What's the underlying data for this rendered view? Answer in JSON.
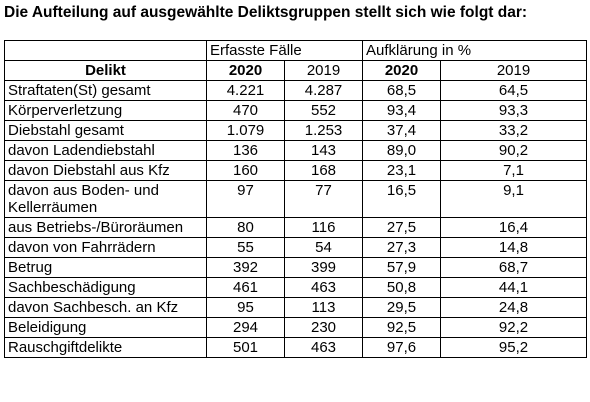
{
  "heading": "Die Aufteilung auf ausgewählte Deliktsgruppen stellt sich wie folgt dar:",
  "groups": {
    "erfasst": "Erfasste Fälle",
    "aufklaerung": "Aufklärung in %"
  },
  "columns": {
    "delikt": "Delikt",
    "y2020a": "2020",
    "y2019a": "2019",
    "y2020b": "2020",
    "y2019b": "2019"
  },
  "rows": [
    {
      "name": "Straftaten(St) gesamt",
      "e2020": "4.221",
      "e2019": "4.287",
      "a2020": "68,5",
      "a2019": "64,5"
    },
    {
      "name": "Körperverletzung",
      "e2020": "470",
      "e2019": "552",
      "a2020": "93,4",
      "a2019": "93,3"
    },
    {
      "name": "Diebstahl gesamt",
      "e2020": "1.079",
      "e2019": "1.253",
      "a2020": "37,4",
      "a2019": "33,2"
    },
    {
      "name": "davon Ladendiebstahl",
      "e2020": "136",
      "e2019": "143",
      "a2020": "89,0",
      "a2019": "90,2"
    },
    {
      "name": "davon Diebstahl aus Kfz",
      "e2020": "160",
      "e2019": "168",
      "a2020": "23,1",
      "a2019": "7,1"
    },
    {
      "name": "davon aus Boden- und Kellerräumen",
      "e2020": "97",
      "e2019": "77",
      "a2020": "16,5",
      "a2019": "9,1"
    },
    {
      "name": "aus Betriebs-/Büroräumen",
      "e2020": "80",
      "e2019": "116",
      "a2020": "27,5",
      "a2019": "16,4"
    },
    {
      "name": "davon von Fahrrädern",
      "e2020": "55",
      "e2019": "54",
      "a2020": "27,3",
      "a2019": "14,8"
    },
    {
      "name": "Betrug",
      "e2020": "392",
      "e2019": "399",
      "a2020": "57,9",
      "a2019": "68,7"
    },
    {
      "name": "Sachbeschädigung",
      "e2020": "461",
      "e2019": "463",
      "a2020": "50,8",
      "a2019": "44,1"
    },
    {
      "name": "davon Sachbesch. an Kfz",
      "e2020": "95",
      "e2019": "113",
      "a2020": "29,5",
      "a2019": "24,8"
    },
    {
      "name": "Beleidigung",
      "e2020": "294",
      "e2019": "230",
      "a2020": "92,5",
      "a2019": "92,2"
    },
    {
      "name": "Rauschgiftdelikte",
      "e2020": "501",
      "e2019": "463",
      "a2020": "97,6",
      "a2019": "95,2"
    }
  ]
}
